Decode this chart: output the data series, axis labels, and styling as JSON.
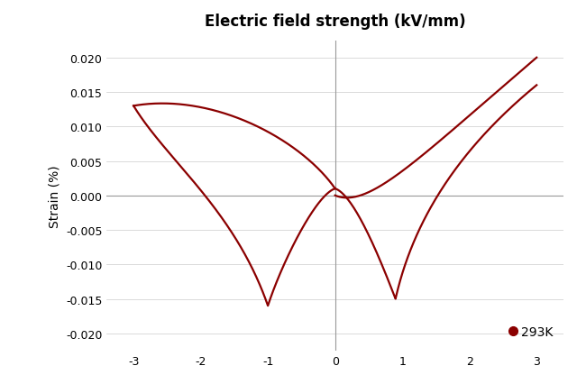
{
  "title": "Electric field strength (kV/mm)",
  "ylabel": "Strain (%)",
  "xlim": [
    -3.4,
    3.4
  ],
  "ylim": [
    -0.0225,
    0.0225
  ],
  "xticks": [
    -3,
    -2,
    -1,
    0,
    1,
    2,
    3
  ],
  "yticks": [
    -0.02,
    -0.015,
    -0.01,
    -0.005,
    0.0,
    0.005,
    0.01,
    0.015,
    0.02
  ],
  "line_color": "#8B0000",
  "legend_label": "293K",
  "legend_color": "#8B0000",
  "background_color": "#FFFFFF",
  "title_fontsize": 12,
  "label_fontsize": 10,
  "tick_fontsize": 9,
  "axisline_color": "#999999",
  "gridline_color": "#cccccc"
}
